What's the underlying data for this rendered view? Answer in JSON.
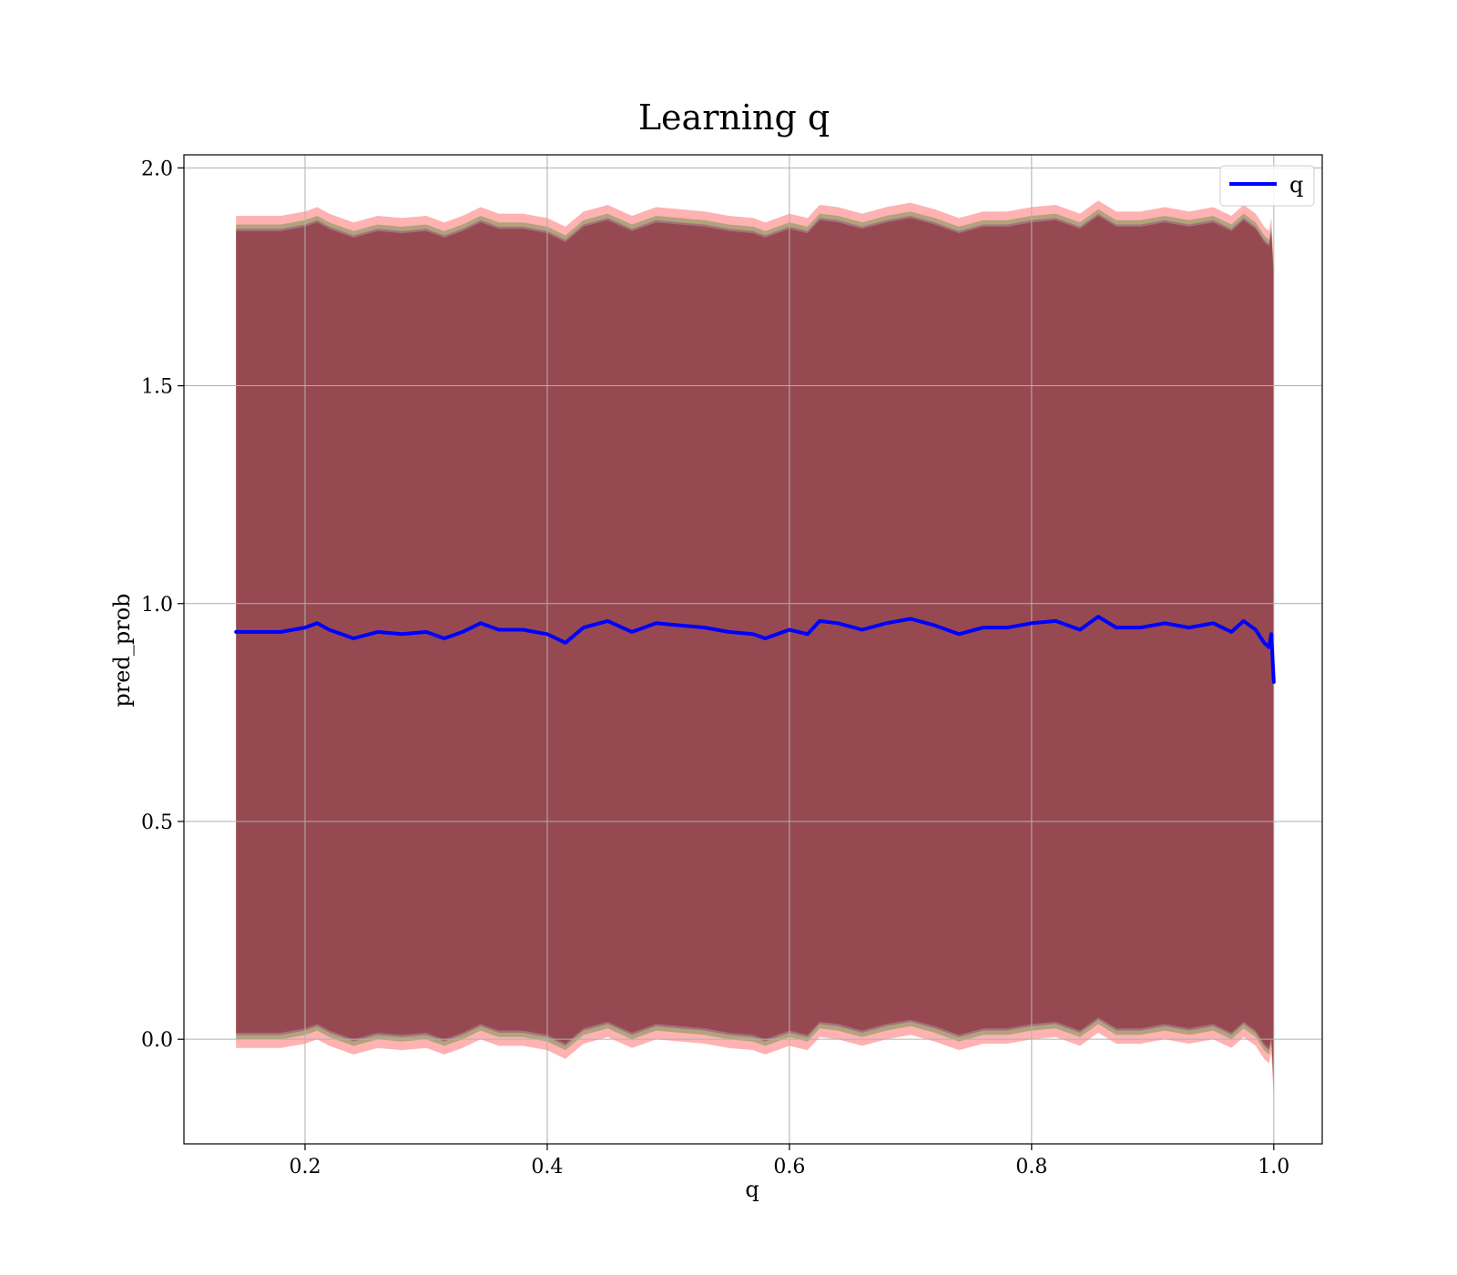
{
  "chart_data": {
    "type": "line",
    "title": "Learning q",
    "xlabel": "q",
    "ylabel": "pred_prob",
    "xlim": [
      0.1,
      1.04
    ],
    "ylim": [
      -0.24,
      2.03
    ],
    "xticks": [
      0.2,
      0.4,
      0.6,
      0.8,
      1.0
    ],
    "xtick_labels": [
      "0.2",
      "0.4",
      "0.6",
      "0.8",
      "1.0"
    ],
    "yticks": [
      0.0,
      0.5,
      1.0,
      1.5,
      2.0
    ],
    "ytick_labels": [
      "0.0",
      "0.5",
      "1.0",
      "1.5",
      "2.0"
    ],
    "grid": true,
    "legend": {
      "placement": "upper right",
      "entries": [
        "q"
      ]
    },
    "series": [
      {
        "name": "q",
        "color": "#0000ff",
        "x": [
          0.143,
          0.16,
          0.18,
          0.2,
          0.21,
          0.22,
          0.24,
          0.26,
          0.28,
          0.3,
          0.315,
          0.33,
          0.345,
          0.36,
          0.38,
          0.4,
          0.415,
          0.43,
          0.45,
          0.47,
          0.49,
          0.51,
          0.53,
          0.55,
          0.57,
          0.58,
          0.6,
          0.615,
          0.625,
          0.64,
          0.66,
          0.68,
          0.7,
          0.72,
          0.74,
          0.76,
          0.78,
          0.8,
          0.82,
          0.84,
          0.855,
          0.87,
          0.89,
          0.91,
          0.93,
          0.95,
          0.965,
          0.975,
          0.985,
          0.992,
          0.996,
          0.998,
          1.0
        ],
        "y": [
          0.935,
          0.935,
          0.935,
          0.945,
          0.955,
          0.94,
          0.92,
          0.935,
          0.93,
          0.935,
          0.92,
          0.935,
          0.955,
          0.94,
          0.94,
          0.93,
          0.91,
          0.945,
          0.96,
          0.935,
          0.955,
          0.95,
          0.945,
          0.935,
          0.93,
          0.92,
          0.94,
          0.93,
          0.96,
          0.955,
          0.94,
          0.955,
          0.965,
          0.95,
          0.93,
          0.945,
          0.945,
          0.955,
          0.96,
          0.94,
          0.97,
          0.945,
          0.945,
          0.955,
          0.945,
          0.955,
          0.935,
          0.96,
          0.94,
          0.91,
          0.9,
          0.93,
          0.82
        ]
      }
    ],
    "bands": [
      {
        "color": "#ff0000",
        "alpha": 0.3,
        "x": [
          0.143,
          0.16,
          0.18,
          0.2,
          0.21,
          0.22,
          0.24,
          0.26,
          0.28,
          0.3,
          0.315,
          0.33,
          0.345,
          0.36,
          0.38,
          0.4,
          0.415,
          0.43,
          0.45,
          0.47,
          0.49,
          0.51,
          0.53,
          0.55,
          0.57,
          0.58,
          0.6,
          0.615,
          0.625,
          0.64,
          0.66,
          0.68,
          0.7,
          0.72,
          0.74,
          0.76,
          0.78,
          0.8,
          0.82,
          0.84,
          0.855,
          0.87,
          0.89,
          0.91,
          0.93,
          0.95,
          0.965,
          0.975,
          0.985,
          0.992,
          0.996,
          0.998,
          1.0
        ],
        "lower": [
          -0.02,
          -0.02,
          -0.02,
          -0.01,
          0.0,
          -0.015,
          -0.035,
          -0.02,
          -0.025,
          -0.02,
          -0.035,
          -0.02,
          0.0,
          -0.015,
          -0.015,
          -0.025,
          -0.045,
          -0.01,
          0.005,
          -0.02,
          0.0,
          -0.005,
          -0.01,
          -0.02,
          -0.025,
          -0.035,
          -0.015,
          -0.025,
          0.005,
          0.0,
          -0.015,
          0.0,
          0.01,
          -0.005,
          -0.025,
          -0.01,
          -0.01,
          0.0,
          0.005,
          -0.015,
          0.015,
          -0.01,
          -0.01,
          0.0,
          -0.01,
          0.0,
          -0.02,
          0.005,
          -0.015,
          -0.045,
          -0.055,
          -0.03,
          -0.14
        ],
        "upper": [
          1.89,
          1.89,
          1.89,
          1.9,
          1.91,
          1.895,
          1.875,
          1.89,
          1.885,
          1.89,
          1.875,
          1.89,
          1.91,
          1.895,
          1.895,
          1.885,
          1.865,
          1.9,
          1.915,
          1.89,
          1.91,
          1.905,
          1.9,
          1.89,
          1.885,
          1.875,
          1.895,
          1.885,
          1.915,
          1.91,
          1.895,
          1.91,
          1.92,
          1.905,
          1.885,
          1.9,
          1.9,
          1.91,
          1.915,
          1.895,
          1.925,
          1.9,
          1.9,
          1.91,
          1.9,
          1.91,
          1.89,
          1.915,
          1.895,
          1.865,
          1.855,
          1.885,
          1.78
        ]
      },
      {
        "color": "#008000",
        "alpha": 0.3,
        "x": [
          0.143,
          0.16,
          0.18,
          0.2,
          0.21,
          0.22,
          0.24,
          0.26,
          0.28,
          0.3,
          0.315,
          0.33,
          0.345,
          0.36,
          0.38,
          0.4,
          0.415,
          0.43,
          0.45,
          0.47,
          0.49,
          0.51,
          0.53,
          0.55,
          0.57,
          0.58,
          0.6,
          0.615,
          0.625,
          0.64,
          0.66,
          0.68,
          0.7,
          0.72,
          0.74,
          0.76,
          0.78,
          0.8,
          0.82,
          0.84,
          0.855,
          0.87,
          0.89,
          0.91,
          0.93,
          0.95,
          0.965,
          0.975,
          0.985,
          0.992,
          0.996,
          0.998,
          1.0
        ],
        "lower": [
          0.0,
          0.0,
          0.0,
          0.01,
          0.02,
          0.005,
          -0.015,
          0.0,
          -0.005,
          0.0,
          -0.015,
          0.0,
          0.02,
          0.005,
          0.005,
          -0.005,
          -0.025,
          0.01,
          0.025,
          0.0,
          0.02,
          0.015,
          0.01,
          0.0,
          -0.005,
          -0.015,
          0.005,
          -0.005,
          0.025,
          0.02,
          0.005,
          0.02,
          0.03,
          0.015,
          -0.005,
          0.01,
          0.01,
          0.02,
          0.025,
          0.005,
          0.035,
          0.01,
          0.01,
          0.02,
          0.01,
          0.02,
          0.0,
          0.025,
          0.005,
          -0.025,
          -0.035,
          -0.01,
          -0.12
        ],
        "upper": [
          1.87,
          1.87,
          1.87,
          1.88,
          1.89,
          1.875,
          1.855,
          1.87,
          1.865,
          1.87,
          1.855,
          1.87,
          1.89,
          1.875,
          1.875,
          1.865,
          1.845,
          1.88,
          1.895,
          1.87,
          1.89,
          1.885,
          1.88,
          1.87,
          1.865,
          1.855,
          1.875,
          1.865,
          1.895,
          1.89,
          1.875,
          1.89,
          1.9,
          1.885,
          1.865,
          1.88,
          1.88,
          1.89,
          1.895,
          1.875,
          1.905,
          1.88,
          1.88,
          1.89,
          1.88,
          1.89,
          1.87,
          1.895,
          1.875,
          1.845,
          1.835,
          1.865,
          1.76
        ]
      },
      {
        "color": "#800080",
        "alpha": 0.3,
        "x": [
          0.143,
          0.16,
          0.18,
          0.2,
          0.21,
          0.22,
          0.24,
          0.26,
          0.28,
          0.3,
          0.315,
          0.33,
          0.345,
          0.36,
          0.38,
          0.4,
          0.415,
          0.43,
          0.45,
          0.47,
          0.49,
          0.51,
          0.53,
          0.55,
          0.57,
          0.58,
          0.6,
          0.615,
          0.625,
          0.64,
          0.66,
          0.68,
          0.7,
          0.72,
          0.74,
          0.76,
          0.78,
          0.8,
          0.82,
          0.84,
          0.855,
          0.87,
          0.89,
          0.91,
          0.93,
          0.95,
          0.965,
          0.975,
          0.985,
          0.992,
          0.996,
          0.998,
          1.0
        ],
        "lower": [
          0.01,
          0.01,
          0.01,
          0.02,
          0.03,
          0.015,
          -0.005,
          0.01,
          0.005,
          0.01,
          -0.005,
          0.01,
          0.03,
          0.015,
          0.015,
          0.005,
          -0.015,
          0.02,
          0.035,
          0.01,
          0.03,
          0.025,
          0.02,
          0.01,
          0.005,
          -0.005,
          0.015,
          0.005,
          0.035,
          0.03,
          0.015,
          0.03,
          0.04,
          0.025,
          0.005,
          0.02,
          0.02,
          0.03,
          0.035,
          0.015,
          0.045,
          0.02,
          0.02,
          0.03,
          0.02,
          0.03,
          0.01,
          0.035,
          0.015,
          -0.015,
          -0.025,
          0.0,
          -0.11
        ],
        "upper": [
          1.86,
          1.86,
          1.86,
          1.87,
          1.88,
          1.865,
          1.845,
          1.86,
          1.855,
          1.86,
          1.845,
          1.86,
          1.88,
          1.865,
          1.865,
          1.855,
          1.835,
          1.87,
          1.885,
          1.86,
          1.88,
          1.875,
          1.87,
          1.86,
          1.855,
          1.845,
          1.865,
          1.855,
          1.885,
          1.88,
          1.865,
          1.88,
          1.89,
          1.875,
          1.855,
          1.87,
          1.87,
          1.88,
          1.885,
          1.865,
          1.895,
          1.87,
          1.87,
          1.88,
          1.87,
          1.88,
          1.86,
          1.885,
          1.865,
          1.835,
          1.825,
          1.855,
          1.75
        ]
      },
      {
        "color": "#800000",
        "alpha": 0.35,
        "x": [
          0.143,
          0.16,
          0.18,
          0.2,
          0.21,
          0.22,
          0.24,
          0.26,
          0.28,
          0.3,
          0.315,
          0.33,
          0.345,
          0.36,
          0.38,
          0.4,
          0.415,
          0.43,
          0.45,
          0.47,
          0.49,
          0.51,
          0.53,
          0.55,
          0.57,
          0.58,
          0.6,
          0.615,
          0.625,
          0.64,
          0.66,
          0.68,
          0.7,
          0.72,
          0.74,
          0.76,
          0.78,
          0.8,
          0.82,
          0.84,
          0.855,
          0.87,
          0.89,
          0.91,
          0.93,
          0.95,
          0.965,
          0.975,
          0.985,
          0.992,
          0.996,
          0.998,
          1.0
        ],
        "lower": [
          0.015,
          0.015,
          0.015,
          0.025,
          0.035,
          0.02,
          0.0,
          0.015,
          0.01,
          0.015,
          0.0,
          0.015,
          0.035,
          0.02,
          0.02,
          0.01,
          -0.01,
          0.025,
          0.04,
          0.015,
          0.035,
          0.03,
          0.025,
          0.015,
          0.01,
          0.0,
          0.02,
          0.01,
          0.04,
          0.035,
          0.02,
          0.035,
          0.045,
          0.03,
          0.01,
          0.025,
          0.025,
          0.035,
          0.04,
          0.02,
          0.05,
          0.025,
          0.025,
          0.035,
          0.025,
          0.035,
          0.015,
          0.04,
          0.02,
          -0.01,
          -0.02,
          0.005,
          -0.1
        ],
        "upper": [
          1.855,
          1.855,
          1.855,
          1.865,
          1.875,
          1.86,
          1.84,
          1.855,
          1.85,
          1.855,
          1.84,
          1.855,
          1.875,
          1.86,
          1.86,
          1.85,
          1.83,
          1.865,
          1.88,
          1.855,
          1.875,
          1.87,
          1.865,
          1.855,
          1.85,
          1.84,
          1.86,
          1.85,
          1.88,
          1.875,
          1.86,
          1.875,
          1.885,
          1.87,
          1.85,
          1.865,
          1.865,
          1.875,
          1.88,
          1.86,
          1.89,
          1.865,
          1.865,
          1.875,
          1.865,
          1.875,
          1.855,
          1.88,
          1.86,
          1.83,
          1.82,
          1.85,
          1.745
        ]
      }
    ]
  }
}
